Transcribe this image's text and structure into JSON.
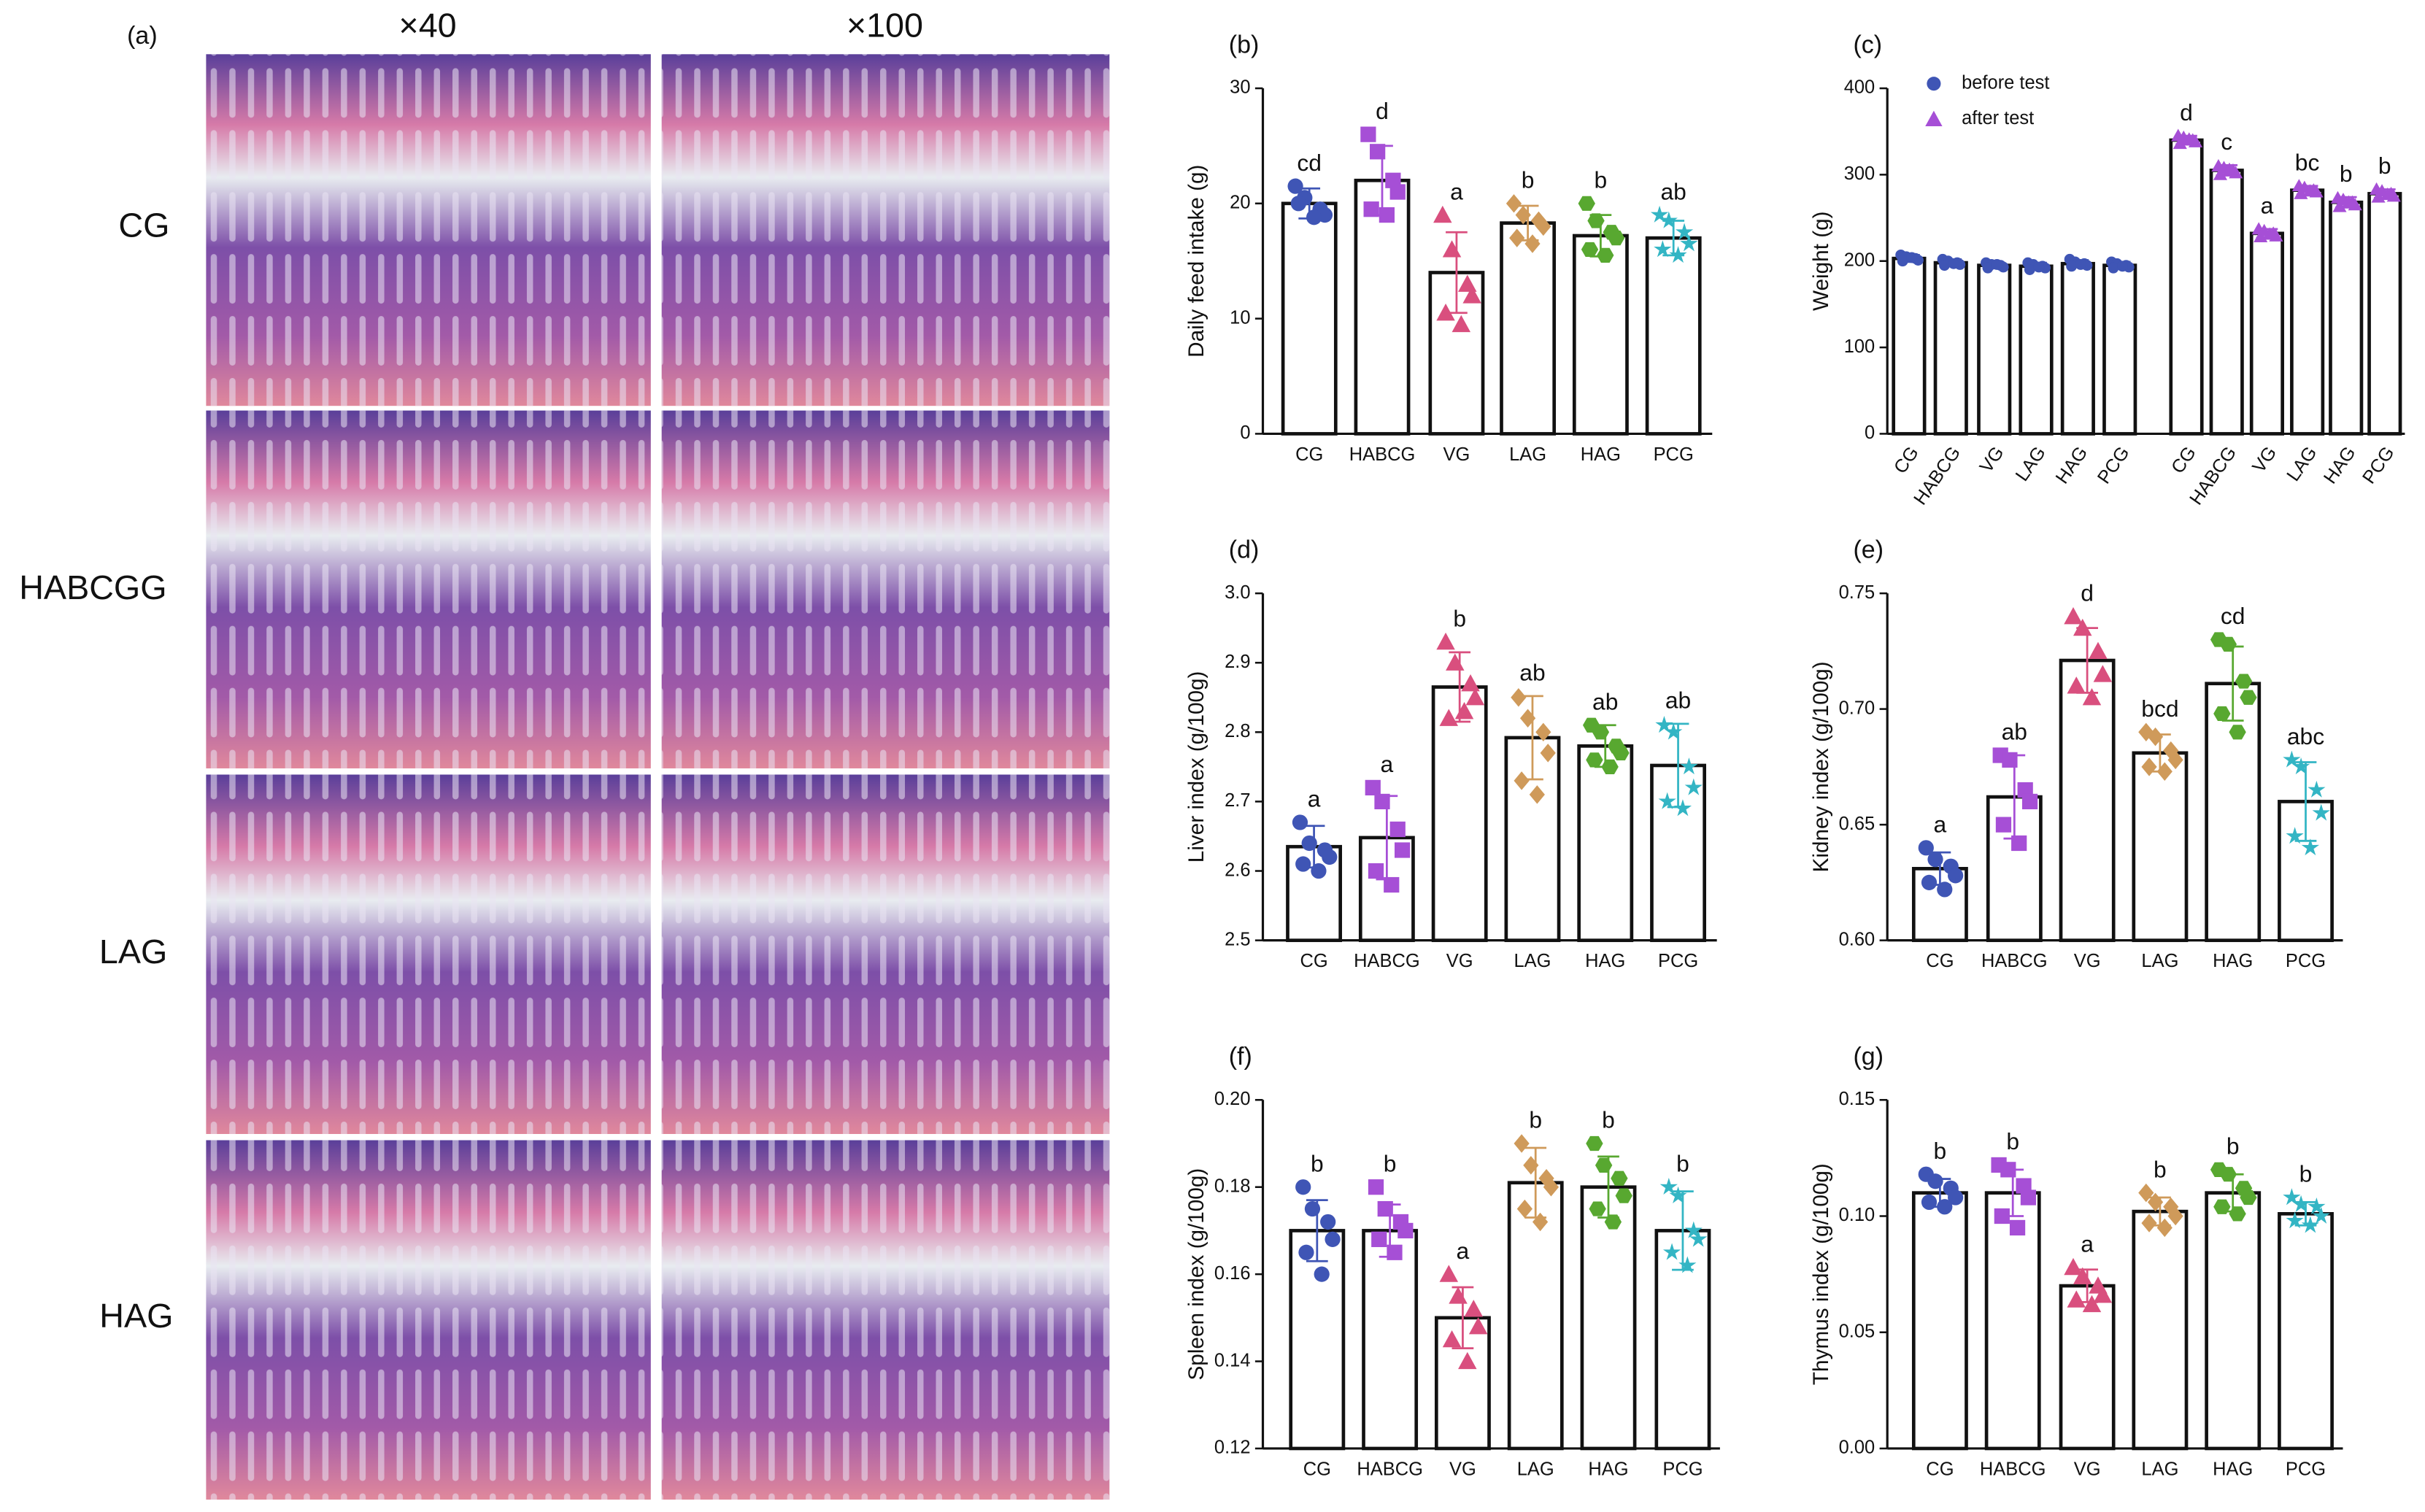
{
  "panel_a": {
    "label": "(a)",
    "columns": [
      "×40",
      "×100"
    ],
    "rows": [
      "CG",
      "HABCGG",
      "LAG",
      "HAG"
    ]
  },
  "chart_data": [
    {
      "type": "bar",
      "title": "(b)",
      "y_label": "Daily feed intake (g)",
      "categories": [
        "CG",
        "HABCG",
        "VG",
        "LAG",
        "HAG",
        "PCG"
      ],
      "ylim": [
        0,
        30
      ],
      "yticks": [
        0,
        10,
        20,
        30
      ],
      "values": [
        20,
        22,
        14,
        18.3,
        17.2,
        17
      ],
      "errors": [
        1.3,
        3,
        3.5,
        1.5,
        1.8,
        1.5
      ],
      "annotations": [
        "cd",
        "d",
        "a",
        "b",
        "b",
        "ab"
      ],
      "points": [
        [
          21.5,
          20.5,
          19.5,
          19,
          20,
          18.8
        ],
        [
          26,
          24.5,
          22,
          21,
          19.5,
          19
        ],
        [
          19,
          16,
          13,
          12,
          10.5,
          9.5
        ],
        [
          20,
          19,
          18.5,
          18,
          17,
          16.5
        ],
        [
          20,
          18.5,
          17.5,
          17,
          16,
          15.5
        ],
        [
          19,
          18.5,
          17.5,
          16.5,
          16,
          15.5
        ]
      ],
      "colors": [
        "#3f55b5",
        "#a64fd6",
        "#d94f7e",
        "#cf9a5a",
        "#58a830",
        "#33b5c4"
      ],
      "markers": [
        "circle",
        "square",
        "triangle",
        "diamond",
        "hexagon",
        "star"
      ]
    },
    {
      "type": "grouped_bar",
      "title": "(c)",
      "y_label": "Weight (g)",
      "categories": [
        "CG",
        "HABCG",
        "VG",
        "LAG",
        "HAG",
        "PCG"
      ],
      "ylim": [
        0,
        400
      ],
      "yticks": [
        0,
        100,
        200,
        300,
        400
      ],
      "legend": "upper left",
      "series": [
        {
          "name": "before test",
          "color": "#3f55b5",
          "marker": "circle",
          "values": [
            203,
            198,
            195,
            194,
            197,
            195
          ],
          "errors": [
            4,
            4,
            3,
            4,
            4,
            4
          ],
          "points": [
            [
              207,
              205,
              203,
              201,
              200,
              204
            ],
            [
              202,
              200,
              198,
              196,
              195,
              197
            ],
            [
              198,
              196,
              195,
              193,
              192,
              196
            ],
            [
              198,
              196,
              194,
              192,
              190,
              193
            ],
            [
              202,
              199,
              197,
              195,
              194,
              196
            ],
            [
              199,
              197,
              195,
              193,
              192,
              194
            ]
          ]
        },
        {
          "name": "after test",
          "color": "#a64fd6",
          "marker": "triangle",
          "values": [
            340,
            305,
            232,
            282,
            268,
            278
          ],
          "errors": [
            5,
            6,
            5,
            5,
            6,
            5
          ],
          "annotations": [
            "d",
            "c",
            "a",
            "bc",
            "b",
            "b"
          ],
          "points": [
            [
              345,
              343,
              340,
              338,
              336,
              341
            ],
            [
              310,
              308,
              305,
              302,
              300,
              306
            ],
            [
              237,
              235,
              232,
              229,
              228,
              231
            ],
            [
              287,
              285,
              282,
              280,
              278,
              281
            ],
            [
              273,
              271,
              268,
              265,
              263,
              268
            ],
            [
              283,
              281,
              278,
              275,
              274,
              277
            ]
          ]
        }
      ]
    },
    {
      "type": "bar",
      "title": "(d)",
      "y_label": "Liver index (g/100g)",
      "categories": [
        "CG",
        "HABCG",
        "VG",
        "LAG",
        "HAG",
        "PCG"
      ],
      "ylim": [
        2.5,
        3
      ],
      "yticks": [
        2.5,
        2.6,
        2.7,
        2.8,
        2.9,
        {
          "value": 3,
          "label": "3.0"
        }
      ],
      "values": [
        2.635,
        2.648,
        2.865,
        2.792,
        2.78,
        2.752
      ],
      "errors": [
        0.03,
        0.06,
        0.05,
        0.06,
        0.03,
        0.06
      ],
      "annotations": [
        "a",
        "a",
        "b",
        "ab",
        "ab",
        "ab"
      ],
      "points": [
        [
          2.67,
          2.64,
          2.63,
          2.62,
          2.61,
          2.6
        ],
        [
          2.72,
          2.7,
          2.66,
          2.63,
          2.6,
          2.58
        ],
        [
          2.93,
          2.9,
          2.87,
          2.85,
          2.82,
          2.83
        ],
        [
          2.85,
          2.82,
          2.8,
          2.77,
          2.73,
          2.71
        ],
        [
          2.81,
          2.8,
          2.78,
          2.77,
          2.76,
          2.75
        ],
        [
          2.81,
          2.8,
          2.75,
          2.72,
          2.7,
          2.69
        ]
      ],
      "colors": [
        "#3f55b5",
        "#a64fd6",
        "#d94f7e",
        "#cf9a5a",
        "#58a830",
        "#33b5c4"
      ],
      "markers": [
        "circle",
        "square",
        "triangle",
        "diamond",
        "hexagon",
        "star"
      ]
    },
    {
      "type": "bar",
      "title": "(e)",
      "y_label": "Kidney index (g/100g)",
      "categories": [
        "CG",
        "HABCG",
        "VG",
        "LAG",
        "HAG",
        "PCG"
      ],
      "ylim": [
        0.6,
        0.75
      ],
      "yticks": [
        {
          "value": 0.6,
          "label": "0.60"
        },
        0.65,
        {
          "value": 0.7,
          "label": "0.70"
        },
        0.75
      ],
      "values": [
        0.631,
        0.662,
        0.721,
        0.681,
        0.711,
        0.66
      ],
      "errors": [
        0.007,
        0.018,
        0.014,
        0.008,
        0.016,
        0.017
      ],
      "annotations": [
        "a",
        "ab",
        "d",
        "bcd",
        "cd",
        "abc"
      ],
      "points": [
        [
          0.64,
          0.635,
          0.632,
          0.628,
          0.625,
          0.622
        ],
        [
          0.68,
          0.678,
          0.665,
          0.66,
          0.65,
          0.642
        ],
        [
          0.74,
          0.735,
          0.725,
          0.715,
          0.71,
          0.705
        ],
        [
          0.69,
          0.688,
          0.682,
          0.678,
          0.675,
          0.673
        ],
        [
          0.73,
          0.728,
          0.712,
          0.705,
          0.698,
          0.69
        ],
        [
          0.678,
          0.675,
          0.665,
          0.655,
          0.645,
          0.64
        ]
      ],
      "colors": [
        "#3f55b5",
        "#a64fd6",
        "#d94f7e",
        "#cf9a5a",
        "#58a830",
        "#33b5c4"
      ],
      "markers": [
        "circle",
        "square",
        "triangle",
        "diamond",
        "hexagon",
        "star"
      ]
    },
    {
      "type": "bar",
      "title": "(f)",
      "y_label": "Spleen index (g/100g)",
      "categories": [
        "CG",
        "HABCG",
        "VG",
        "LAG",
        "HAG",
        "PCG"
      ],
      "ylim": [
        0.12,
        0.2
      ],
      "yticks": [
        0.12,
        0.14,
        0.16,
        0.18,
        {
          "value": 0.2,
          "label": "0.20"
        }
      ],
      "values": [
        0.17,
        0.17,
        0.15,
        0.181,
        0.18,
        0.17
      ],
      "errors": [
        0.007,
        0.006,
        0.007,
        0.008,
        0.007,
        0.009
      ],
      "annotations": [
        "b",
        "b",
        "a",
        "b",
        "b",
        "b"
      ],
      "points": [
        [
          0.18,
          0.175,
          0.172,
          0.168,
          0.165,
          0.16
        ],
        [
          0.18,
          0.175,
          0.172,
          0.17,
          0.168,
          0.165
        ],
        [
          0.16,
          0.155,
          0.152,
          0.148,
          0.145,
          0.14
        ],
        [
          0.19,
          0.185,
          0.182,
          0.18,
          0.175,
          0.172
        ],
        [
          0.19,
          0.185,
          0.182,
          0.178,
          0.175,
          0.172
        ],
        [
          0.18,
          0.178,
          0.17,
          0.168,
          0.165,
          0.162
        ]
      ],
      "colors": [
        "#3f55b5",
        "#a64fd6",
        "#d94f7e",
        "#cf9a5a",
        "#58a830",
        "#33b5c4"
      ],
      "markers": [
        "circle",
        "square",
        "triangle",
        "diamond",
        "hexagon",
        "star"
      ]
    },
    {
      "type": "bar",
      "title": "(g)",
      "y_label": "Thymus index (g/100g)",
      "categories": [
        "CG",
        "HABCG",
        "VG",
        "LAG",
        "HAG",
        "PCG"
      ],
      "ylim": [
        0,
        0.15
      ],
      "yticks": [
        {
          "value": 0,
          "label": "0.00"
        },
        0.05,
        {
          "value": 0.1,
          "label": "0.10"
        },
        0.15
      ],
      "values": [
        0.11,
        0.11,
        0.07,
        0.102,
        0.11,
        0.101
      ],
      "errors": [
        0.006,
        0.01,
        0.007,
        0.006,
        0.008,
        0.005
      ],
      "annotations": [
        "b",
        "b",
        "a",
        "b",
        "b",
        "b"
      ],
      "points": [
        [
          0.118,
          0.115,
          0.112,
          0.108,
          0.106,
          0.104
        ],
        [
          0.122,
          0.12,
          0.113,
          0.108,
          0.1,
          0.095
        ],
        [
          0.078,
          0.074,
          0.07,
          0.066,
          0.064,
          0.062
        ],
        [
          0.11,
          0.106,
          0.104,
          0.1,
          0.097,
          0.095
        ],
        [
          0.12,
          0.118,
          0.112,
          0.108,
          0.104,
          0.101
        ],
        [
          0.108,
          0.105,
          0.104,
          0.1,
          0.098,
          0.096
        ]
      ],
      "colors": [
        "#3f55b5",
        "#a64fd6",
        "#d94f7e",
        "#cf9a5a",
        "#58a830",
        "#33b5c4"
      ],
      "markers": [
        "circle",
        "square",
        "triangle",
        "diamond",
        "hexagon",
        "star"
      ]
    }
  ]
}
